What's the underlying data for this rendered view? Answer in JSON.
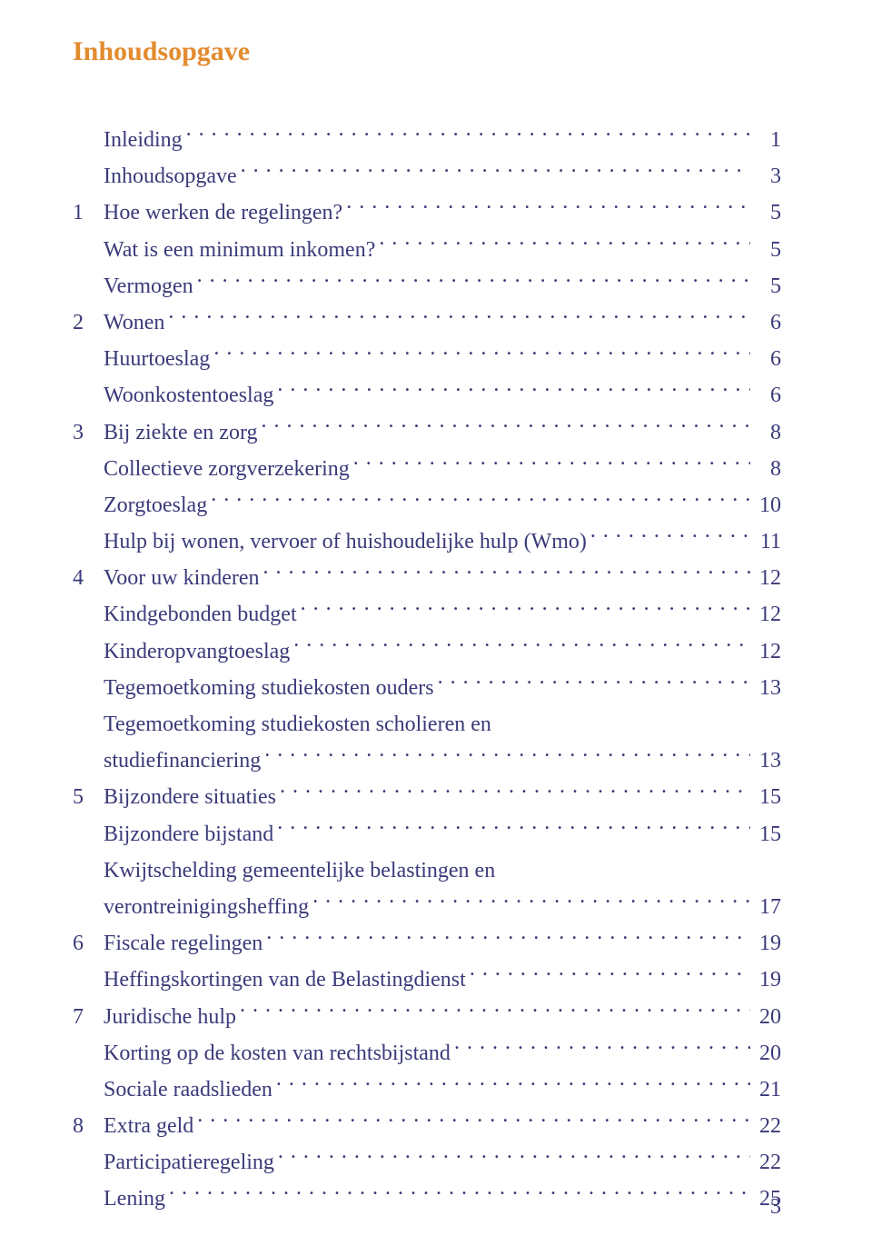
{
  "colors": {
    "heading": "#e28b2f",
    "text": "#3a3a7a",
    "background": "#ffffff"
  },
  "typography": {
    "title_fontsize": 30,
    "body_fontsize": 24,
    "font_family": "Georgia, serif"
  },
  "title": "Inhoudsopgave",
  "page_number": "3",
  "toc": [
    {
      "level": 2,
      "num": "",
      "label": "Inleiding",
      "page": "1"
    },
    {
      "level": 2,
      "num": "",
      "label": "Inhoudsopgave",
      "page": "3"
    },
    {
      "level": 1,
      "num": "1",
      "label": "Hoe werken de regelingen?",
      "page": "5"
    },
    {
      "level": 2,
      "num": "",
      "label": "Wat is een minimum inkomen?",
      "page": "5"
    },
    {
      "level": 2,
      "num": "",
      "label": "Vermogen",
      "page": "5"
    },
    {
      "level": 1,
      "num": "2",
      "label": "Wonen",
      "page": "6"
    },
    {
      "level": 2,
      "num": "",
      "label": "Huurtoeslag",
      "page": "6"
    },
    {
      "level": 2,
      "num": "",
      "label": "Woonkostentoeslag",
      "page": "6"
    },
    {
      "level": 1,
      "num": "3",
      "label": "Bij ziekte en zorg",
      "page": "8"
    },
    {
      "level": 2,
      "num": "",
      "label": "Collectieve zorgverzekering",
      "page": "8"
    },
    {
      "level": 2,
      "num": "",
      "label": "Zorgtoeslag",
      "page": "10"
    },
    {
      "level": 2,
      "num": "",
      "label": "Hulp bij wonen, vervoer of huishoudelijke hulp (Wmo)",
      "page": "11"
    },
    {
      "level": 1,
      "num": "4",
      "label": "Voor uw kinderen",
      "page": "12"
    },
    {
      "level": 2,
      "num": "",
      "label": "Kindgebonden budget",
      "page": "12"
    },
    {
      "level": 2,
      "num": "",
      "label": "Kinderopvangtoeslag",
      "page": "12"
    },
    {
      "level": 2,
      "num": "",
      "label": "Tegemoetkoming studiekosten ouders",
      "page": "13"
    },
    {
      "level": 2,
      "num": "",
      "label_line1": "Tegemoetkoming studiekosten scholieren en",
      "label": "studiefinanciering",
      "page": "13",
      "multi": true
    },
    {
      "level": 1,
      "num": "5",
      "label": "Bijzondere situaties",
      "page": "15"
    },
    {
      "level": 2,
      "num": "",
      "label": "Bijzondere bijstand",
      "page": "15"
    },
    {
      "level": 2,
      "num": "",
      "label_line1": "Kwijtschelding gemeentelijke belastingen en",
      "label": "verontreinigingsheffing",
      "page": "17",
      "multi": true
    },
    {
      "level": 1,
      "num": "6",
      "label": "Fiscale regelingen",
      "page": "19"
    },
    {
      "level": 2,
      "num": "",
      "label": "Heffingskortingen van de Belastingdienst",
      "page": "19"
    },
    {
      "level": 1,
      "num": "7",
      "label": "Juridische hulp",
      "page": "20"
    },
    {
      "level": 2,
      "num": "",
      "label": "Korting op de kosten van rechtsbijstand",
      "page": "20"
    },
    {
      "level": 2,
      "num": "",
      "label": "Sociale raadslieden",
      "page": "21"
    },
    {
      "level": 1,
      "num": "8",
      "label": "Extra geld",
      "page": "22"
    },
    {
      "level": 2,
      "num": "",
      "label": "Participatieregeling",
      "page": "22"
    },
    {
      "level": 2,
      "num": "",
      "label": "Lening",
      "page": "25"
    }
  ]
}
